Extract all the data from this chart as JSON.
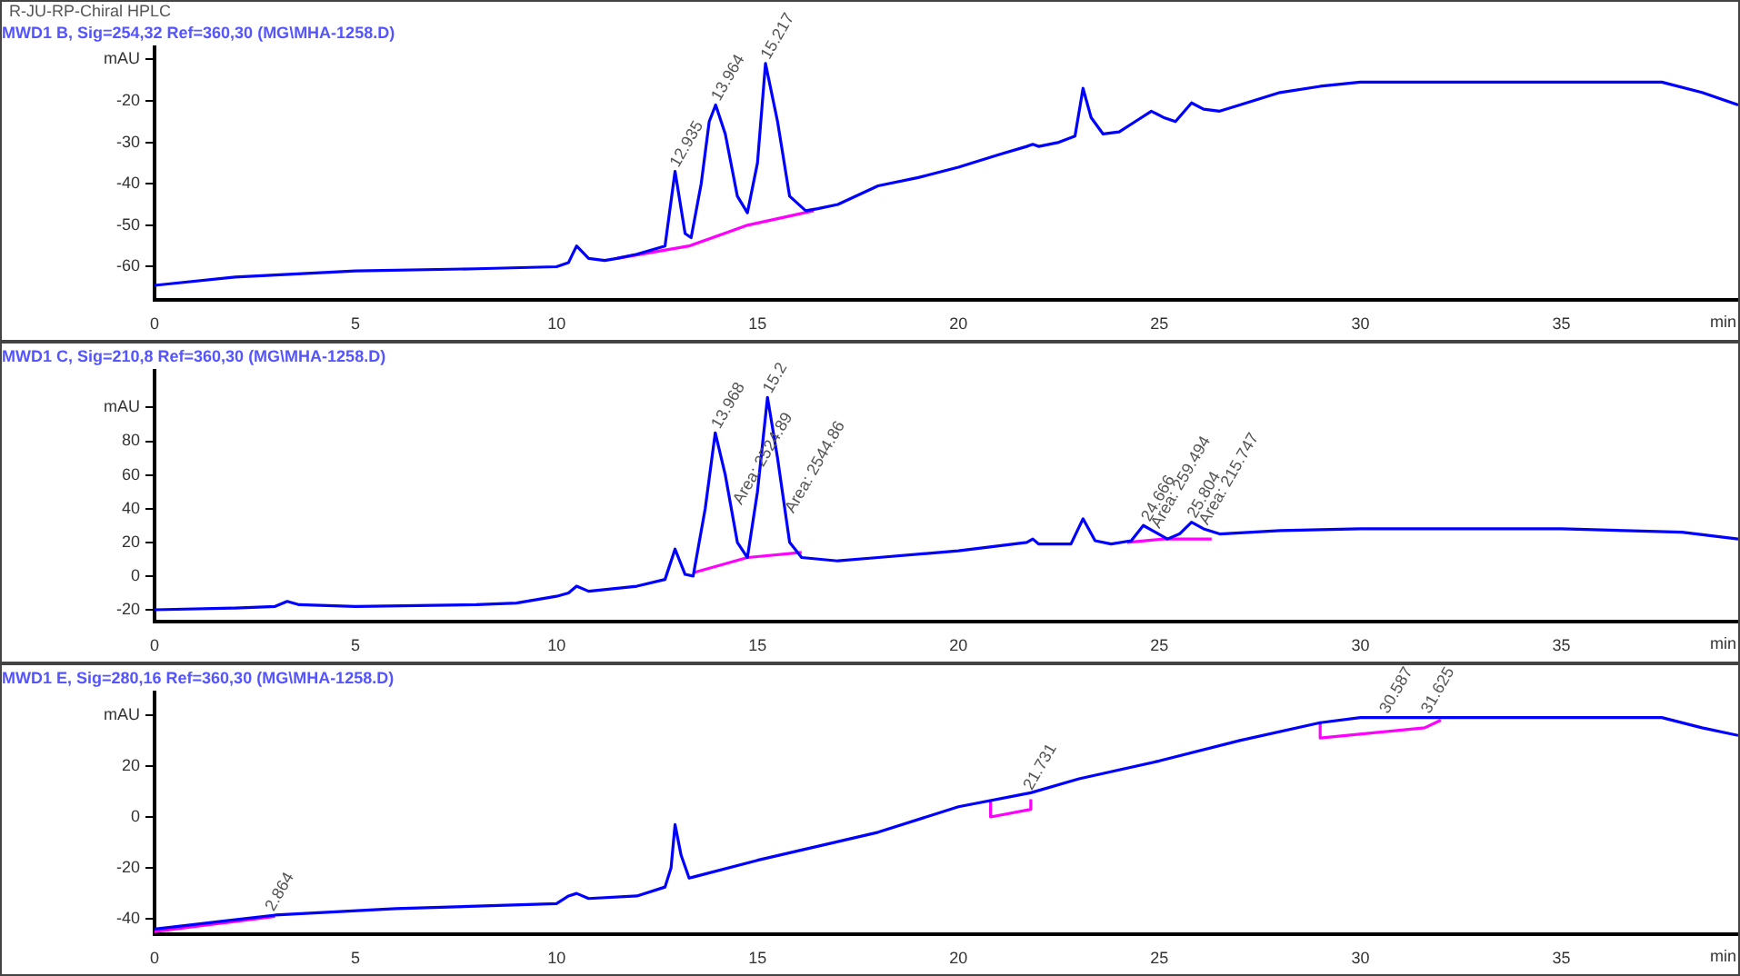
{
  "chart_data": [
    {
      "type": "line",
      "title": "MWD1 B, Sig=254,32 Ref=360,30 (MG\\MHA-1258.D)",
      "ylabel": "mAU",
      "xlabel": "min",
      "xlim": [
        0,
        39.4
      ],
      "xticks": [
        0,
        5,
        10,
        15,
        20,
        25,
        30,
        35
      ],
      "ylim": [
        -68,
        -7
      ],
      "yticks": [
        {
          "value": -10,
          "label": null
        },
        -20,
        -30,
        -40,
        -50,
        -60
      ],
      "grid": false,
      "series": [
        {
          "color": "#0000ff",
          "x": [
            0,
            2,
            5,
            8,
            10,
            10.3,
            10.5,
            10.8,
            11.2,
            11.5,
            12,
            12.7,
            12.95,
            13.2,
            13.35,
            13.6,
            13.8,
            13.96,
            14.2,
            14.5,
            14.75,
            15,
            15.2,
            15.5,
            15.8,
            16.2,
            16.5,
            17,
            18,
            19,
            20,
            21,
            21.7,
            21.85,
            22,
            22.5,
            22.9,
            23.1,
            23.3,
            23.6,
            24,
            24.4,
            24.8,
            25.1,
            25.4,
            25.8,
            26.1,
            26.5,
            27,
            28,
            29,
            30,
            32,
            35,
            37.5,
            38.5,
            39.4
          ],
          "values": [
            -64.5,
            -62.5,
            -61,
            -60.5,
            -60,
            -59,
            -55,
            -58,
            -58.5,
            -58,
            -57,
            -55,
            -37,
            -52,
            -53,
            -40,
            -25,
            -21,
            -28,
            -43,
            -47,
            -35,
            -11,
            -25,
            -43,
            -46.5,
            -46,
            -45,
            -40.5,
            -38.5,
            -36,
            -33,
            -31,
            -30.5,
            -31,
            -30,
            -28.5,
            -17,
            -24,
            -28,
            -27.5,
            -25,
            -22.5,
            -24,
            -25,
            -20.5,
            -22,
            -22.5,
            -21,
            -18,
            -16.5,
            -15.5,
            -15.5,
            -15.5,
            -15.5,
            -18,
            -21
          ]
        },
        {
          "color": "#ff00ff",
          "x": [
            11.5,
            13.3,
            14.75,
            16.4
          ],
          "values": [
            -58,
            -55,
            -50,
            -46.5
          ]
        }
      ],
      "annotations": [
        "R-JU-RP-Chiral HPLC",
        {
          "text": "12.935",
          "x": 12.935,
          "y": -37
        },
        {
          "text": "13.964",
          "x": 13.964,
          "y": -21
        },
        {
          "text": "15.217",
          "x": 15.2,
          "y": -11
        }
      ]
    },
    {
      "type": "line",
      "title": "MWD1 C, Sig=210,8 Ref=360,30 (MG\\MHA-1258.D)",
      "ylabel": "mAU",
      "xlabel": "min",
      "xlim": [
        0,
        39.4
      ],
      "xticks": [
        0,
        5,
        10,
        15,
        20,
        25,
        30,
        35
      ],
      "ylim": [
        -27,
        122
      ],
      "yticks": [
        {
          "value": 100,
          "label": null
        },
        80,
        60,
        40,
        20,
        0,
        -20
      ],
      "grid": false,
      "series": [
        {
          "color": "#0000ff",
          "x": [
            0,
            2,
            3,
            3.3,
            3.6,
            5,
            8,
            9,
            10,
            10.3,
            10.5,
            10.8,
            12,
            12.7,
            12.95,
            13.2,
            13.4,
            13.7,
            13.95,
            14.2,
            14.5,
            14.75,
            15,
            15.25,
            15.5,
            15.8,
            16.1,
            17,
            18,
            20,
            21.7,
            21.85,
            22,
            22.8,
            23.1,
            23.4,
            23.8,
            24.3,
            24.6,
            24.9,
            25.2,
            25.5,
            25.8,
            26.1,
            26.5,
            28,
            30,
            35,
            38,
            39.4
          ],
          "values": [
            -20,
            -19,
            -18,
            -15,
            -17,
            -18,
            -17,
            -16,
            -12,
            -10,
            -6,
            -9,
            -6,
            -2,
            16,
            1,
            0,
            40,
            85,
            60,
            20,
            11,
            50,
            106,
            70,
            20,
            11,
            9,
            11,
            15,
            20,
            22,
            19,
            19,
            34,
            21,
            19,
            21,
            30,
            26,
            22,
            25,
            32,
            28,
            25,
            27,
            28,
            28,
            26,
            22
          ]
        },
        {
          "color": "#ff00ff",
          "x": [
            13.4,
            14.75,
            16.1
          ],
          "values": [
            2,
            11,
            14
          ]
        },
        {
          "color": "#ff00ff",
          "x": [
            24.2,
            25.1,
            26.3
          ],
          "values": [
            20,
            22,
            22
          ]
        }
      ],
      "annotations": [
        {
          "text": "13.968",
          "x": 13.968,
          "y": 85
        },
        {
          "text": "15.2",
          "x": 15.25,
          "y": 106
        },
        {
          "text": "Area: 2524.89",
          "x": 14.5,
          "y": 40
        },
        {
          "text": "Area: 2544.86",
          "x": 15.8,
          "y": 35
        },
        {
          "text": "24.666",
          "x": 24.666,
          "y": 30
        },
        {
          "text": "25.804",
          "x": 25.804,
          "y": 32
        },
        {
          "text": "Area: 259.494",
          "x": 24.9,
          "y": 26
        },
        {
          "text": "Area: 215.747",
          "x": 26.1,
          "y": 28
        }
      ]
    },
    {
      "type": "line",
      "title": "MWD1 E, Sig=280,16 Ref=360,30 (MG\\MHA-1258.D)",
      "ylabel": "mAU",
      "xlabel": "min",
      "xlim": [
        0,
        39.4
      ],
      "xticks": [
        0,
        5,
        10,
        15,
        20,
        25,
        30,
        35
      ],
      "ylim": [
        -46,
        49
      ],
      "yticks": [
        {
          "value": 40,
          "label": null
        },
        20,
        0,
        -20,
        -40
      ],
      "grid": false,
      "series": [
        {
          "color": "#0000ff",
          "x": [
            0,
            3,
            6,
            10,
            10.3,
            10.5,
            10.8,
            12,
            12.7,
            12.85,
            12.95,
            13.1,
            13.3,
            15,
            18,
            20,
            21.8,
            23,
            25,
            27,
            29,
            30,
            32,
            35,
            37.5,
            38.5,
            39.4
          ],
          "values": [
            -44,
            -38.5,
            -36,
            -34,
            -31,
            -30,
            -32,
            -31,
            -27.5,
            -20,
            -3,
            -15,
            -24,
            -17,
            -6,
            4,
            9.5,
            15,
            22,
            30,
            37,
            39,
            39,
            39,
            39,
            35,
            32
          ]
        },
        {
          "color": "#ff00ff",
          "x": [
            0,
            3
          ],
          "values": [
            -45,
            -39
          ]
        },
        {
          "color": "#ff00ff",
          "x": [
            20.8,
            20.8,
            21.8,
            21.8
          ],
          "values": [
            6,
            0,
            3,
            7
          ]
        },
        {
          "color": "#ff00ff",
          "x": [
            29,
            29,
            31.6,
            32
          ],
          "values": [
            37,
            31,
            35,
            38
          ]
        }
      ],
      "annotations": [
        {
          "text": "2.864",
          "x": 2.864,
          "y": -38.5
        },
        {
          "text": "21.731",
          "x": 21.731,
          "y": 9
        },
        {
          "text": "30.587",
          "x": 30.587,
          "y": 39
        },
        {
          "text": "31.625",
          "x": 31.625,
          "y": 39
        }
      ]
    }
  ]
}
